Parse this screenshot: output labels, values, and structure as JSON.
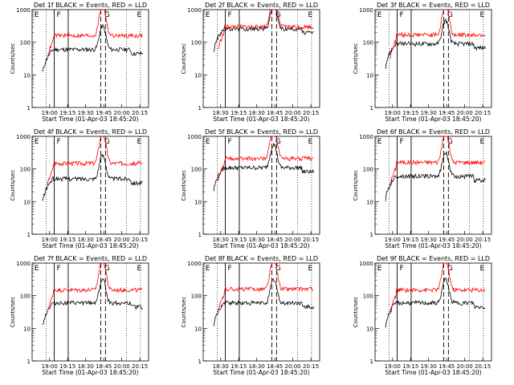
{
  "chart_data": [
    {
      "type": "line",
      "title": "Det 1f BLACK = Events, RED = LLD",
      "xlabel": "Start Time (01-Apr-03 18:45:20)",
      "ylabel": "Counts/sec",
      "ylim": [
        1,
        1000
      ],
      "yscale": "log",
      "x_ticks": [
        "19:00",
        "19:15",
        "19:30",
        "19:45",
        "20:00",
        "20:15"
      ],
      "y_ticks": [
        "1",
        "10",
        "100",
        "1000"
      ],
      "markers": [
        "E",
        "F",
        "G",
        "E"
      ],
      "series": [
        {
          "name": "BLACK",
          "color": "#000000",
          "level": 60
        },
        {
          "name": "RED",
          "color": "#ff0000",
          "level": 160
        }
      ]
    },
    {
      "type": "line",
      "title": "Det 2f BLACK = Events, RED = LLD",
      "xlabel": "Start Time (01-Apr-03 18:45:20)",
      "ylabel": "Counts/sec",
      "ylim": [
        1,
        1000
      ],
      "yscale": "log",
      "x_ticks": [
        "18:30",
        "19:15",
        "18:30",
        "18:45",
        "20:00",
        "20:15"
      ],
      "y_ticks": [
        "1",
        "10",
        "100",
        "1000"
      ],
      "markers": [
        "E",
        "F",
        "G",
        "E"
      ],
      "series": [
        {
          "name": "BLACK",
          "color": "#000000",
          "level": 260
        },
        {
          "name": "RED",
          "color": "#ff0000",
          "level": 300
        }
      ]
    },
    {
      "type": "line",
      "title": "Det 3f BLACK = Events, RED = LLD",
      "xlabel": "Start Time (01-Apr-03 18:45:20)",
      "ylabel": "Counts/sec",
      "ylim": [
        1,
        1000
      ],
      "yscale": "log",
      "x_ticks": [
        "19:00",
        "19:15",
        "19:30",
        "19:45",
        "20:00",
        "20:15"
      ],
      "y_ticks": [
        "1",
        "10",
        "100",
        "1000"
      ],
      "markers": [
        "E",
        "F",
        "G",
        "E"
      ],
      "series": [
        {
          "name": "BLACK",
          "color": "#000000",
          "level": 90
        },
        {
          "name": "RED",
          "color": "#ff0000",
          "level": 170
        }
      ]
    },
    {
      "type": "line",
      "title": "Det 4f BLACK = Events, RED = LLD",
      "xlabel": "Start Time (01-Apr-03 18:45:20)",
      "ylabel": "Counts/sec",
      "ylim": [
        1,
        1000
      ],
      "yscale": "log",
      "x_ticks": [
        "19:00",
        "19:15",
        "18:30",
        "18:45",
        "20:00",
        "20:15"
      ],
      "y_ticks": [
        "1",
        "10",
        "100",
        "1000"
      ],
      "markers": [
        "E",
        "F",
        "G",
        "E"
      ],
      "series": [
        {
          "name": "BLACK",
          "color": "#000000",
          "level": 50
        },
        {
          "name": "RED",
          "color": "#ff0000",
          "level": 150
        }
      ]
    },
    {
      "type": "line",
      "title": "Det 5f BLACK = Events, RED = LLD",
      "xlabel": "Start Time (01-Apr-03 18:45:20)",
      "ylabel": "Counts/sec",
      "ylim": [
        1,
        1000
      ],
      "yscale": "log",
      "x_ticks": [
        "18:30",
        "19:15",
        "18:30",
        "18:45",
        "20:00",
        "20:15"
      ],
      "y_ticks": [
        "1",
        "10",
        "100",
        "1000"
      ],
      "markers": [
        "E",
        "F",
        "G",
        "E"
      ],
      "series": [
        {
          "name": "BLACK",
          "color": "#000000",
          "level": 110
        },
        {
          "name": "RED",
          "color": "#ff0000",
          "level": 210
        }
      ]
    },
    {
      "type": "line",
      "title": "Det 6f BLACK = Events, RED = LLD",
      "xlabel": "Start Time (01-Apr-03 18:45:20)",
      "ylabel": "Counts/sec",
      "ylim": [
        1,
        1000
      ],
      "yscale": "log",
      "x_ticks": [
        "19:00",
        "19:15",
        "19:30",
        "19:45",
        "20:00",
        "20:15"
      ],
      "y_ticks": [
        "1",
        "10",
        "100",
        "1000"
      ],
      "markers": [
        "E",
        "F",
        "G",
        "E"
      ],
      "series": [
        {
          "name": "BLACK",
          "color": "#000000",
          "level": 60
        },
        {
          "name": "RED",
          "color": "#ff0000",
          "level": 160
        }
      ]
    },
    {
      "type": "line",
      "title": "Det 7f BLACK = Events, RED = LLD",
      "xlabel": "Start Time (01-Apr-03 18:45:20)",
      "ylabel": "Counts/sec",
      "ylim": [
        1,
        1000
      ],
      "yscale": "log",
      "x_ticks": [
        "19:00",
        "19:15",
        "18:30",
        "18:45",
        "20:00",
        "20:15"
      ],
      "y_ticks": [
        "1",
        "10",
        "100",
        "1000"
      ],
      "markers": [
        "E",
        "F",
        "G",
        "E"
      ],
      "series": [
        {
          "name": "BLACK",
          "color": "#000000",
          "level": 60
        },
        {
          "name": "RED",
          "color": "#ff0000",
          "level": 150
        }
      ]
    },
    {
      "type": "line",
      "title": "Det 8f BLACK = Events, RED = LLD",
      "xlabel": "Start Time (01-Apr-03 18:45:20)",
      "ylabel": "Counts/sec",
      "ylim": [
        1,
        1000
      ],
      "yscale": "log",
      "x_ticks": [
        "18:30",
        "19:15",
        "18:30",
        "18:45",
        "20:00",
        "20:15"
      ],
      "y_ticks": [
        "1",
        "10",
        "100",
        "1000"
      ],
      "markers": [
        "E",
        "F",
        "G",
        "E"
      ],
      "series": [
        {
          "name": "BLACK",
          "color": "#000000",
          "level": 60
        },
        {
          "name": "RED",
          "color": "#ff0000",
          "level": 160
        }
      ]
    },
    {
      "type": "line",
      "title": "Det 9f BLACK = Events, RED = LLD",
      "xlabel": "Start Time (01-Apr-03 18:45:20)",
      "ylabel": "Counts/sec",
      "ylim": [
        1,
        1000
      ],
      "yscale": "log",
      "x_ticks": [
        "19:00",
        "19:15",
        "19:30",
        "19:45",
        "20:00",
        "20:15"
      ],
      "y_ticks": [
        "1",
        "10",
        "100",
        "1000"
      ],
      "markers": [
        "E",
        "F",
        "G",
        "E"
      ],
      "series": [
        {
          "name": "BLACK",
          "color": "#000000",
          "level": 60
        },
        {
          "name": "RED",
          "color": "#ff0000",
          "level": 150
        }
      ]
    }
  ]
}
